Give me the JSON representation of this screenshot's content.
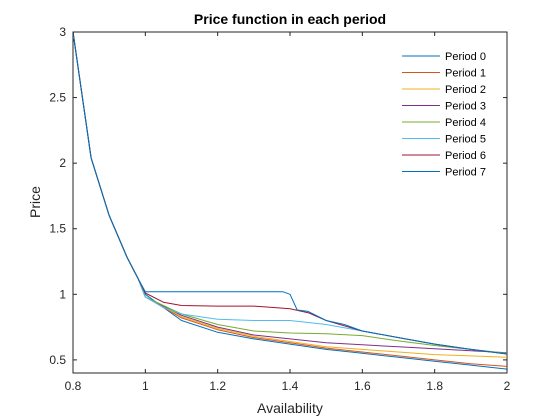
{
  "chart_data": {
    "type": "line",
    "title": "Price function in each period",
    "xlabel": "Availability",
    "ylabel": "Price",
    "xlim": [
      0.8,
      2
    ],
    "ylim": [
      0.4,
      3
    ],
    "xticks": [
      "0.8",
      "1",
      "1.2",
      "1.4",
      "1.6",
      "1.8",
      "2"
    ],
    "yticks": [
      "0.5",
      "1",
      "1.5",
      "2",
      "2.5",
      "3"
    ],
    "grid": false,
    "legend_position": "top-right",
    "series": [
      {
        "name": "Period 0",
        "color": "#0072BD",
        "points": [
          [
            0.8,
            3.0
          ],
          [
            0.85,
            2.04
          ],
          [
            0.9,
            1.6
          ],
          [
            0.95,
            1.28
          ],
          [
            0.98,
            1.12
          ],
          [
            1.0,
            1.0
          ],
          [
            1.1,
            0.8
          ],
          [
            1.2,
            0.71
          ],
          [
            1.3,
            0.66
          ],
          [
            1.4,
            0.62
          ],
          [
            1.5,
            0.58
          ],
          [
            1.6,
            0.55
          ],
          [
            1.7,
            0.52
          ],
          [
            1.8,
            0.49
          ],
          [
            1.9,
            0.46
          ],
          [
            2.0,
            0.43
          ]
        ]
      },
      {
        "name": "Period 1",
        "color": "#D95319",
        "points": [
          [
            0.8,
            3.0
          ],
          [
            0.85,
            2.04
          ],
          [
            0.9,
            1.6
          ],
          [
            0.95,
            1.28
          ],
          [
            0.98,
            1.12
          ],
          [
            1.0,
            0.98
          ],
          [
            1.1,
            0.82
          ],
          [
            1.2,
            0.73
          ],
          [
            1.3,
            0.67
          ],
          [
            1.4,
            0.63
          ],
          [
            1.5,
            0.59
          ],
          [
            1.6,
            0.56
          ],
          [
            1.7,
            0.53
          ],
          [
            1.8,
            0.5
          ],
          [
            1.9,
            0.47
          ],
          [
            2.0,
            0.45
          ]
        ]
      },
      {
        "name": "Period 2",
        "color": "#EDB120",
        "points": [
          [
            0.8,
            3.0
          ],
          [
            0.85,
            2.04
          ],
          [
            0.9,
            1.6
          ],
          [
            0.95,
            1.28
          ],
          [
            0.98,
            1.12
          ],
          [
            1.0,
            0.98
          ],
          [
            1.1,
            0.83
          ],
          [
            1.2,
            0.74
          ],
          [
            1.3,
            0.68
          ],
          [
            1.4,
            0.64
          ],
          [
            1.5,
            0.6
          ],
          [
            1.6,
            0.58
          ],
          [
            1.7,
            0.56
          ],
          [
            1.8,
            0.54
          ],
          [
            1.9,
            0.53
          ],
          [
            2.0,
            0.52
          ]
        ]
      },
      {
        "name": "Period 3",
        "color": "#7E2F8E",
        "points": [
          [
            0.8,
            3.0
          ],
          [
            0.85,
            2.04
          ],
          [
            0.9,
            1.6
          ],
          [
            0.95,
            1.28
          ],
          [
            0.98,
            1.12
          ],
          [
            1.0,
            0.98
          ],
          [
            1.1,
            0.84
          ],
          [
            1.2,
            0.75
          ],
          [
            1.3,
            0.69
          ],
          [
            1.4,
            0.66
          ],
          [
            1.5,
            0.63
          ],
          [
            1.6,
            0.615
          ],
          [
            1.7,
            0.6
          ],
          [
            1.8,
            0.585
          ],
          [
            1.9,
            0.57
          ],
          [
            2.0,
            0.555
          ]
        ]
      },
      {
        "name": "Period 4",
        "color": "#77AC30",
        "points": [
          [
            0.8,
            3.0
          ],
          [
            0.85,
            2.04
          ],
          [
            0.9,
            1.6
          ],
          [
            0.95,
            1.28
          ],
          [
            0.98,
            1.12
          ],
          [
            1.0,
            0.98
          ],
          [
            1.1,
            0.85
          ],
          [
            1.2,
            0.77
          ],
          [
            1.3,
            0.72
          ],
          [
            1.4,
            0.705
          ],
          [
            1.5,
            0.7
          ],
          [
            1.6,
            0.685
          ],
          [
            1.7,
            0.645
          ],
          [
            1.8,
            0.61
          ],
          [
            1.9,
            0.58
          ],
          [
            2.0,
            0.55
          ]
        ]
      },
      {
        "name": "Period 5",
        "color": "#4DBEEE",
        "points": [
          [
            0.8,
            3.0
          ],
          [
            0.85,
            2.04
          ],
          [
            0.9,
            1.6
          ],
          [
            0.95,
            1.28
          ],
          [
            0.98,
            1.12
          ],
          [
            1.0,
            0.98
          ],
          [
            1.05,
            0.9
          ],
          [
            1.1,
            0.85
          ],
          [
            1.2,
            0.81
          ],
          [
            1.3,
            0.8
          ],
          [
            1.4,
            0.8
          ],
          [
            1.5,
            0.77
          ],
          [
            1.6,
            0.72
          ],
          [
            1.7,
            0.67
          ],
          [
            1.8,
            0.62
          ],
          [
            1.9,
            0.58
          ],
          [
            2.0,
            0.545
          ]
        ]
      },
      {
        "name": "Period 6",
        "color": "#A2142F",
        "points": [
          [
            0.8,
            3.0
          ],
          [
            0.85,
            2.04
          ],
          [
            0.9,
            1.6
          ],
          [
            0.95,
            1.28
          ],
          [
            0.98,
            1.12
          ],
          [
            1.0,
            1.01
          ],
          [
            1.05,
            0.94
          ],
          [
            1.1,
            0.915
          ],
          [
            1.2,
            0.91
          ],
          [
            1.3,
            0.91
          ],
          [
            1.35,
            0.9
          ],
          [
            1.4,
            0.89
          ],
          [
            1.45,
            0.86
          ],
          [
            1.5,
            0.8
          ],
          [
            1.55,
            0.76
          ],
          [
            1.6,
            0.72
          ],
          [
            1.7,
            0.67
          ],
          [
            1.8,
            0.62
          ],
          [
            1.9,
            0.58
          ],
          [
            2.0,
            0.545
          ]
        ]
      },
      {
        "name": "Period 7",
        "color": "#0072BD",
        "points": [
          [
            0.8,
            3.0
          ],
          [
            0.85,
            2.04
          ],
          [
            0.9,
            1.6
          ],
          [
            0.95,
            1.28
          ],
          [
            0.98,
            1.12
          ],
          [
            1.0,
            1.02
          ],
          [
            1.1,
            1.02
          ],
          [
            1.2,
            1.02
          ],
          [
            1.3,
            1.02
          ],
          [
            1.38,
            1.02
          ],
          [
            1.4,
            1.0
          ],
          [
            1.42,
            0.88
          ],
          [
            1.45,
            0.87
          ],
          [
            1.5,
            0.8
          ],
          [
            1.55,
            0.77
          ],
          [
            1.6,
            0.72
          ],
          [
            1.7,
            0.67
          ],
          [
            1.8,
            0.62
          ],
          [
            1.9,
            0.58
          ],
          [
            2.0,
            0.545
          ]
        ]
      }
    ]
  }
}
